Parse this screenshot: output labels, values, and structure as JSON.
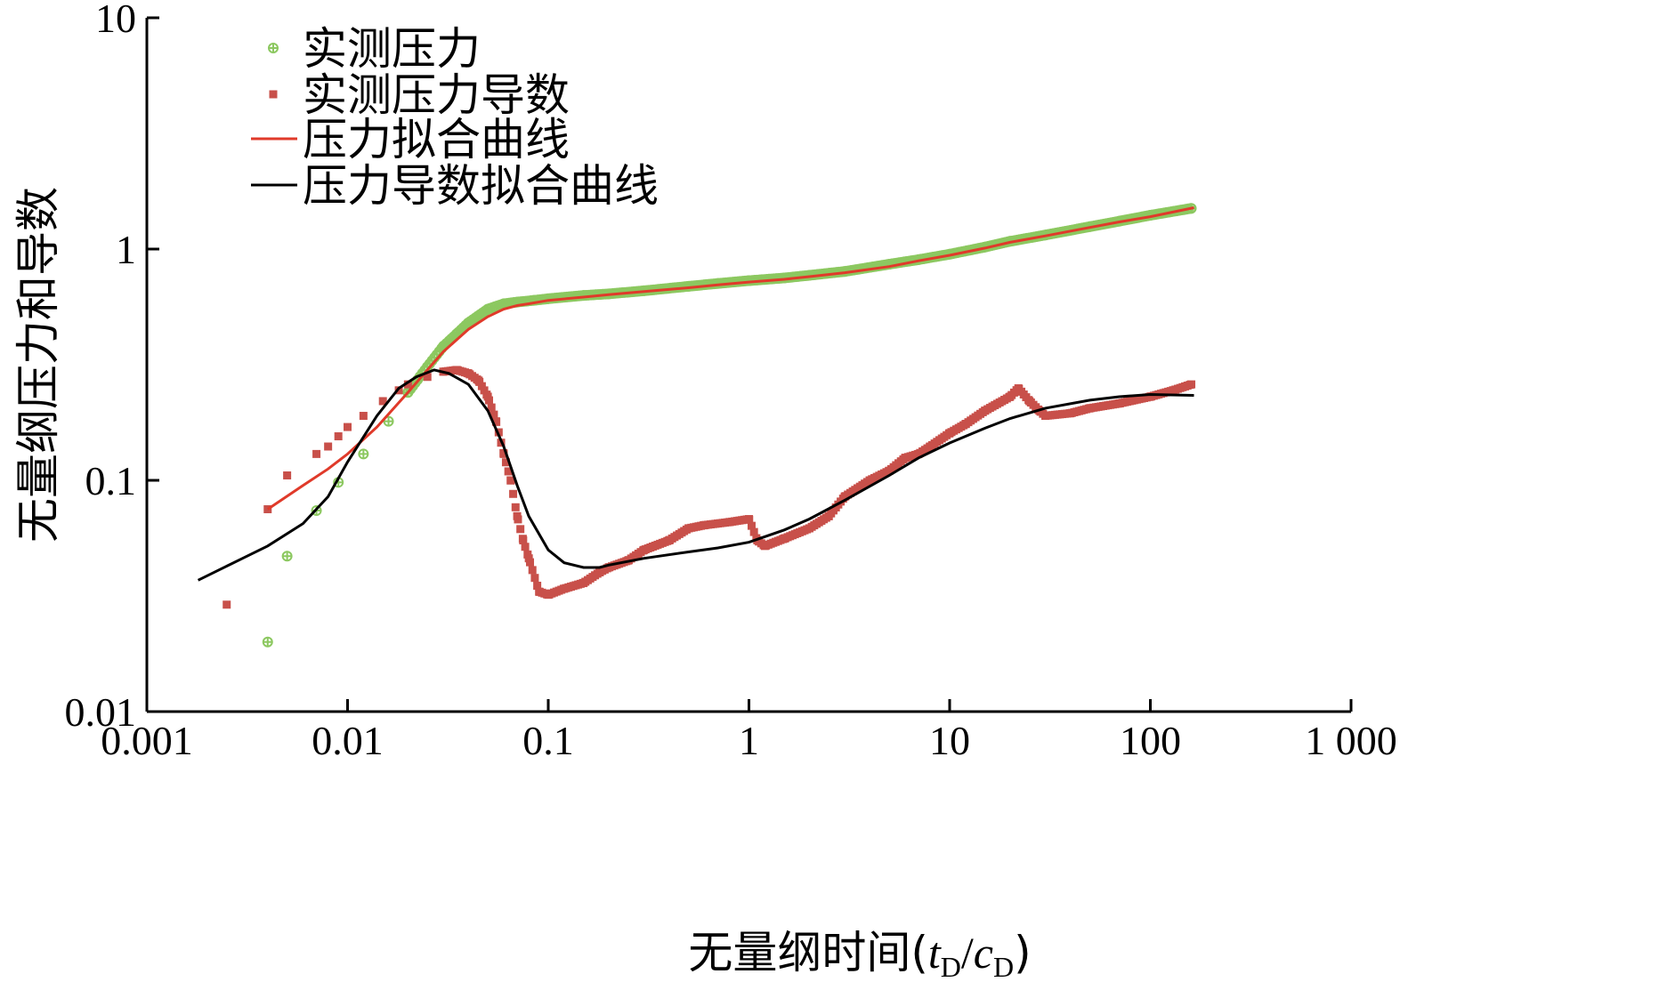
{
  "chart_data": {
    "type": "scatter",
    "x_scale": "log",
    "y_scale": "log",
    "xlabel_main": "无量纲时间(",
    "xlabel_t": "t",
    "xlabel_sub1": "D",
    "xlabel_slash": "/",
    "xlabel_c": "c",
    "xlabel_sub2": "D",
    "xlabel_close": ")",
    "ylabel": "无量纲压力和导数",
    "xlim": [
      0.001,
      1000
    ],
    "ylim": [
      0.01,
      10
    ],
    "x_ticks": [
      {
        "value": 0.001,
        "label": "0.001"
      },
      {
        "value": 0.01,
        "label": "0.01"
      },
      {
        "value": 0.1,
        "label": "0.1"
      },
      {
        "value": 1,
        "label": "1"
      },
      {
        "value": 10,
        "label": "10"
      },
      {
        "value": 100,
        "label": "100"
      },
      {
        "value": 1000,
        "label": "1 000"
      }
    ],
    "y_ticks": [
      {
        "value": 0.01,
        "label": "0.01"
      },
      {
        "value": 0.1,
        "label": "0.1"
      },
      {
        "value": 1,
        "label": "1"
      },
      {
        "value": 10,
        "label": "10"
      }
    ],
    "grid": false,
    "legend_position": "top-left",
    "series": [
      {
        "name": "实测压力",
        "kind": "markers",
        "color": "#8cc860",
        "x": [
          0.004,
          0.005,
          0.007,
          0.009,
          0.012,
          0.016,
          0.02,
          0.025,
          0.03,
          0.035,
          0.04,
          0.05,
          0.06,
          0.07,
          0.085,
          0.1,
          0.15,
          0.2,
          0.3,
          0.5,
          0.7,
          1,
          1.5,
          2,
          3,
          5,
          7,
          10,
          15,
          20,
          30,
          50,
          70,
          100,
          160
        ],
        "y": [
          0.02,
          0.047,
          0.074,
          0.098,
          0.13,
          0.18,
          0.24,
          0.31,
          0.38,
          0.43,
          0.48,
          0.55,
          0.58,
          0.59,
          0.6,
          0.61,
          0.63,
          0.64,
          0.66,
          0.69,
          0.71,
          0.73,
          0.75,
          0.77,
          0.8,
          0.86,
          0.9,
          0.95,
          1.02,
          1.08,
          1.15,
          1.25,
          1.32,
          1.4,
          1.5
        ]
      },
      {
        "name": "实测压力导数",
        "kind": "markers",
        "color": "#c8504a",
        "x": [
          0.0025,
          0.004,
          0.005,
          0.007,
          0.008,
          0.009,
          0.01,
          0.012,
          0.015,
          0.018,
          0.02,
          0.025,
          0.03,
          0.035,
          0.04,
          0.045,
          0.05,
          0.055,
          0.06,
          0.065,
          0.07,
          0.075,
          0.08,
          0.09,
          0.1,
          0.12,
          0.15,
          0.18,
          0.2,
          0.25,
          0.3,
          0.4,
          0.5,
          0.6,
          0.8,
          1,
          1.1,
          1.2,
          1.5,
          2,
          2.5,
          3,
          4,
          5,
          6,
          7,
          8,
          10,
          12,
          15,
          20,
          22,
          25,
          28,
          30,
          40,
          50,
          70,
          100,
          130,
          160
        ],
        "y": [
          0.029,
          0.075,
          0.105,
          0.13,
          0.14,
          0.155,
          0.17,
          0.19,
          0.22,
          0.245,
          0.26,
          0.28,
          0.295,
          0.3,
          0.29,
          0.27,
          0.23,
          0.18,
          0.13,
          0.1,
          0.07,
          0.055,
          0.046,
          0.033,
          0.032,
          0.034,
          0.036,
          0.04,
          0.042,
          0.045,
          0.05,
          0.055,
          0.062,
          0.064,
          0.066,
          0.068,
          0.055,
          0.052,
          0.056,
          0.062,
          0.07,
          0.085,
          0.1,
          0.11,
          0.125,
          0.13,
          0.14,
          0.16,
          0.175,
          0.2,
          0.23,
          0.25,
          0.22,
          0.2,
          0.19,
          0.195,
          0.205,
          0.215,
          0.23,
          0.245,
          0.26
        ]
      },
      {
        "name": "压力拟合曲线",
        "kind": "line",
        "color": "#e03a2a",
        "x": [
          0.004,
          0.006,
          0.008,
          0.01,
          0.014,
          0.02,
          0.025,
          0.03,
          0.04,
          0.05,
          0.06,
          0.07,
          0.08,
          0.1,
          0.15,
          0.2,
          0.3,
          0.5,
          0.7,
          1,
          1.5,
          2,
          3,
          5,
          7,
          10,
          15,
          20,
          30,
          50,
          70,
          100,
          165
        ],
        "y": [
          0.075,
          0.095,
          0.112,
          0.13,
          0.17,
          0.24,
          0.3,
          0.36,
          0.45,
          0.51,
          0.55,
          0.57,
          0.58,
          0.6,
          0.62,
          0.635,
          0.655,
          0.68,
          0.7,
          0.72,
          0.74,
          0.76,
          0.79,
          0.84,
          0.89,
          0.94,
          1.01,
          1.07,
          1.14,
          1.24,
          1.31,
          1.38,
          1.51
        ]
      },
      {
        "name": "压力导数拟合曲线",
        "kind": "line",
        "color": "#000000",
        "x": [
          0.0018,
          0.003,
          0.004,
          0.006,
          0.008,
          0.01,
          0.014,
          0.018,
          0.022,
          0.027,
          0.032,
          0.04,
          0.05,
          0.06,
          0.07,
          0.08,
          0.1,
          0.12,
          0.15,
          0.18,
          0.2,
          0.3,
          0.5,
          0.7,
          1,
          1.5,
          2,
          3,
          5,
          7,
          10,
          15,
          20,
          30,
          50,
          70,
          100,
          165
        ],
        "y": [
          0.037,
          0.046,
          0.052,
          0.065,
          0.085,
          0.12,
          0.19,
          0.25,
          0.28,
          0.3,
          0.29,
          0.26,
          0.2,
          0.14,
          0.095,
          0.07,
          0.05,
          0.044,
          0.042,
          0.042,
          0.043,
          0.046,
          0.049,
          0.051,
          0.054,
          0.061,
          0.068,
          0.082,
          0.105,
          0.125,
          0.145,
          0.168,
          0.185,
          0.205,
          0.222,
          0.23,
          0.235,
          0.233
        ]
      }
    ]
  }
}
